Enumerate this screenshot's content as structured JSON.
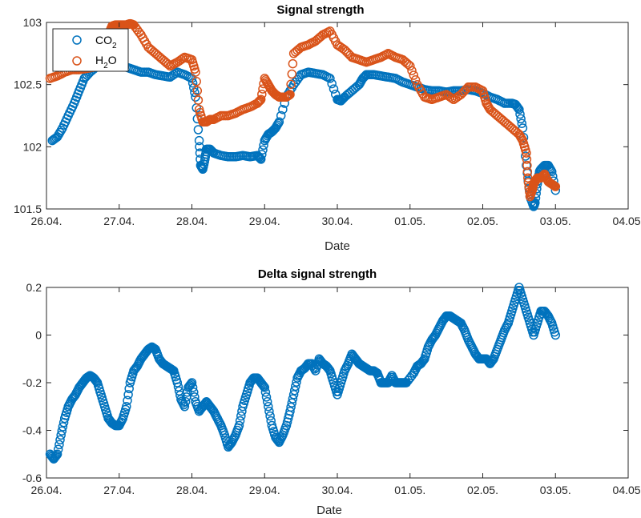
{
  "chart_data": [
    {
      "type": "scatter",
      "title": "Signal strength",
      "xlabel": "Date",
      "ylabel": "",
      "x_tick_labels": [
        "26.04.",
        "27.04.",
        "28.04.",
        "29.04.",
        "30.04.",
        "01.05.",
        "02.05.",
        "03.05.",
        "04.05."
      ],
      "xlim_days": [
        0,
        8
      ],
      "ylim": [
        101.5,
        103
      ],
      "y_ticks": [
        101.5,
        102,
        102.5,
        103
      ],
      "y_tick_labels": [
        "101.5",
        "102",
        "102.5",
        "103"
      ],
      "legend_position": "top-left",
      "series": [
        {
          "name": "CO2",
          "name_base": "CO",
          "name_sub": "2",
          "color": "#0072BD",
          "x": [
            0.08,
            0.15,
            0.22,
            0.3,
            0.38,
            0.45,
            0.52,
            0.6,
            0.7,
            0.8,
            0.9,
            1.0,
            1.1,
            1.2,
            1.3,
            1.4,
            1.5,
            1.6,
            1.7,
            1.8,
            1.9,
            2.0,
            2.05,
            2.1,
            2.12,
            2.15,
            2.18,
            2.2,
            2.25,
            2.3,
            2.4,
            2.5,
            2.6,
            2.7,
            2.8,
            2.9,
            2.95,
            3.0,
            3.05,
            3.1,
            3.15,
            3.2,
            3.3,
            3.4,
            3.5,
            3.6,
            3.7,
            3.8,
            3.9,
            4.0,
            4.05,
            4.1,
            4.2,
            4.3,
            4.35,
            4.4,
            4.5,
            4.6,
            4.7,
            4.8,
            4.9,
            5.0,
            5.1,
            5.2,
            5.3,
            5.4,
            5.5,
            5.6,
            5.7,
            5.8,
            5.9,
            6.0,
            6.1,
            6.2,
            6.3,
            6.4,
            6.45,
            6.5,
            6.55,
            6.6,
            6.65,
            6.7,
            6.72,
            6.75,
            6.78,
            6.8,
            6.85,
            6.9,
            6.95,
            7.0
          ],
          "y": [
            102.05,
            102.08,
            102.15,
            102.25,
            102.35,
            102.45,
            102.55,
            102.6,
            102.65,
            102.66,
            102.65,
            102.65,
            102.64,
            102.62,
            102.6,
            102.6,
            102.58,
            102.57,
            102.56,
            102.6,
            102.58,
            102.55,
            102.4,
            102.05,
            101.85,
            101.82,
            101.9,
            101.98,
            101.98,
            101.95,
            101.93,
            101.92,
            101.92,
            101.93,
            101.92,
            101.93,
            101.9,
            102.05,
            102.1,
            102.12,
            102.15,
            102.2,
            102.4,
            102.5,
            102.58,
            102.6,
            102.59,
            102.58,
            102.55,
            102.38,
            102.37,
            102.4,
            102.45,
            102.5,
            102.55,
            102.58,
            102.58,
            102.57,
            102.56,
            102.55,
            102.52,
            102.5,
            102.48,
            102.46,
            102.45,
            102.45,
            102.44,
            102.45,
            102.45,
            102.46,
            102.45,
            102.43,
            102.4,
            102.38,
            102.35,
            102.35,
            102.34,
            102.3,
            102.15,
            101.85,
            101.6,
            101.52,
            101.55,
            101.7,
            101.8,
            101.82,
            101.85,
            101.85,
            101.8,
            101.65
          ]
        },
        {
          "name": "H2O",
          "name_base": "H",
          "name_sub": "2",
          "name_tail": "O",
          "color": "#D95319",
          "x": [
            0.05,
            0.15,
            0.25,
            0.35,
            0.45,
            0.55,
            0.65,
            0.75,
            0.8,
            0.85,
            0.9,
            0.95,
            1.0,
            1.05,
            1.1,
            1.15,
            1.2,
            1.3,
            1.4,
            1.5,
            1.6,
            1.7,
            1.8,
            1.9,
            2.0,
            2.05,
            2.1,
            2.15,
            2.2,
            2.25,
            2.3,
            2.4,
            2.5,
            2.6,
            2.7,
            2.8,
            2.9,
            2.95,
            3.0,
            3.05,
            3.1,
            3.15,
            3.2,
            3.3,
            3.35,
            3.4,
            3.5,
            3.6,
            3.7,
            3.8,
            3.9,
            4.0,
            4.1,
            4.2,
            4.3,
            4.4,
            4.5,
            4.6,
            4.7,
            4.8,
            4.9,
            5.0,
            5.1,
            5.2,
            5.3,
            5.4,
            5.5,
            5.6,
            5.7,
            5.8,
            5.9,
            6.0,
            6.05,
            6.1,
            6.2,
            6.3,
            6.4,
            6.5,
            6.55,
            6.6,
            6.62,
            6.65,
            6.68,
            6.7,
            6.72,
            6.75,
            6.8,
            6.85,
            6.9,
            6.95,
            7.0
          ],
          "y": [
            102.55,
            102.57,
            102.6,
            102.62,
            102.62,
            102.63,
            102.64,
            102.66,
            102.75,
            102.9,
            102.97,
            102.98,
            102.98,
            102.98,
            102.98,
            102.99,
            102.98,
            102.9,
            102.8,
            102.75,
            102.7,
            102.65,
            102.68,
            102.72,
            102.7,
            102.6,
            102.3,
            102.2,
            102.2,
            102.22,
            102.22,
            102.25,
            102.25,
            102.27,
            102.3,
            102.32,
            102.35,
            102.38,
            102.55,
            102.5,
            102.45,
            102.42,
            102.4,
            102.4,
            102.42,
            102.75,
            102.8,
            102.82,
            102.85,
            102.9,
            102.93,
            102.82,
            102.78,
            102.72,
            102.7,
            102.68,
            102.7,
            102.72,
            102.75,
            102.72,
            102.7,
            102.65,
            102.5,
            102.4,
            102.38,
            102.4,
            102.42,
            102.38,
            102.42,
            102.48,
            102.48,
            102.45,
            102.35,
            102.3,
            102.25,
            102.2,
            102.15,
            102.1,
            102.05,
            101.95,
            101.75,
            101.6,
            101.65,
            101.7,
            101.72,
            101.75,
            101.75,
            101.78,
            101.72,
            101.7,
            101.68
          ]
        }
      ]
    },
    {
      "type": "scatter",
      "title": "Delta signal strength",
      "xlabel": "Date",
      "ylabel": "",
      "x_tick_labels": [
        "26.04.",
        "27.04.",
        "28.04.",
        "29.04.",
        "30.04.",
        "01.05.",
        "02.05.",
        "03.05.",
        "04.05."
      ],
      "xlim_days": [
        0,
        8
      ],
      "ylim": [
        -0.6,
        0.2
      ],
      "y_ticks": [
        -0.6,
        -0.4,
        -0.2,
        0,
        0.2
      ],
      "y_tick_labels": [
        "-0.6",
        "-0.4",
        "-0.2",
        "0",
        "0.2"
      ],
      "series": [
        {
          "color": "#0072BD",
          "x": [
            0.05,
            0.1,
            0.15,
            0.2,
            0.25,
            0.3,
            0.35,
            0.4,
            0.45,
            0.5,
            0.55,
            0.6,
            0.65,
            0.7,
            0.75,
            0.8,
            0.85,
            0.9,
            0.95,
            1.0,
            1.05,
            1.1,
            1.15,
            1.2,
            1.25,
            1.3,
            1.35,
            1.4,
            1.45,
            1.5,
            1.55,
            1.6,
            1.65,
            1.7,
            1.75,
            1.8,
            1.85,
            1.9,
            1.95,
            2.0,
            2.05,
            2.1,
            2.15,
            2.2,
            2.25,
            2.3,
            2.35,
            2.4,
            2.45,
            2.5,
            2.55,
            2.6,
            2.65,
            2.7,
            2.75,
            2.8,
            2.85,
            2.9,
            2.95,
            3.0,
            3.05,
            3.1,
            3.15,
            3.2,
            3.25,
            3.3,
            3.35,
            3.4,
            3.45,
            3.5,
            3.55,
            3.6,
            3.65,
            3.7,
            3.75,
            3.8,
            3.85,
            3.9,
            3.95,
            4.0,
            4.05,
            4.1,
            4.15,
            4.2,
            4.25,
            4.3,
            4.35,
            4.4,
            4.45,
            4.5,
            4.55,
            4.6,
            4.65,
            4.7,
            4.75,
            4.8,
            4.85,
            4.9,
            4.95,
            5.05,
            5.1,
            5.15,
            5.2,
            5.25,
            5.3,
            5.35,
            5.4,
            5.45,
            5.5,
            5.55,
            5.6,
            5.65,
            5.7,
            5.75,
            5.8,
            5.85,
            5.9,
            5.95,
            6.0,
            6.05,
            6.1,
            6.15,
            6.2,
            6.25,
            6.3,
            6.35,
            6.4,
            6.45,
            6.5,
            6.55,
            6.6,
            6.65,
            6.7,
            6.75,
            6.8,
            6.85,
            6.9,
            6.95,
            7.0
          ],
          "y": [
            -0.5,
            -0.52,
            -0.5,
            -0.42,
            -0.35,
            -0.3,
            -0.27,
            -0.25,
            -0.22,
            -0.2,
            -0.18,
            -0.17,
            -0.18,
            -0.2,
            -0.25,
            -0.3,
            -0.35,
            -0.37,
            -0.38,
            -0.38,
            -0.35,
            -0.3,
            -0.2,
            -0.15,
            -0.13,
            -0.1,
            -0.08,
            -0.06,
            -0.05,
            -0.06,
            -0.1,
            -0.12,
            -0.13,
            -0.14,
            -0.15,
            -0.2,
            -0.27,
            -0.3,
            -0.22,
            -0.2,
            -0.28,
            -0.32,
            -0.3,
            -0.28,
            -0.3,
            -0.32,
            -0.35,
            -0.38,
            -0.42,
            -0.47,
            -0.45,
            -0.42,
            -0.38,
            -0.3,
            -0.25,
            -0.2,
            -0.18,
            -0.18,
            -0.2,
            -0.22,
            -0.3,
            -0.38,
            -0.43,
            -0.45,
            -0.42,
            -0.38,
            -0.32,
            -0.25,
            -0.18,
            -0.15,
            -0.14,
            -0.12,
            -0.12,
            -0.15,
            -0.1,
            -0.12,
            -0.13,
            -0.15,
            -0.2,
            -0.25,
            -0.2,
            -0.15,
            -0.12,
            -0.08,
            -0.1,
            -0.12,
            -0.13,
            -0.14,
            -0.15,
            -0.15,
            -0.16,
            -0.2,
            -0.2,
            -0.2,
            -0.17,
            -0.2,
            -0.2,
            -0.2,
            -0.2,
            -0.16,
            -0.13,
            -0.12,
            -0.1,
            -0.05,
            -0.02,
            0.0,
            0.03,
            0.06,
            0.08,
            0.08,
            0.07,
            0.06,
            0.05,
            0.02,
            -0.02,
            -0.05,
            -0.08,
            -0.1,
            -0.1,
            -0.1,
            -0.12,
            -0.1,
            -0.06,
            -0.02,
            0.02,
            0.05,
            0.1,
            0.15,
            0.2,
            0.15,
            0.1,
            0.05,
            0.0,
            0.05,
            0.1,
            0.1,
            0.08,
            0.05,
            0.0
          ]
        }
      ]
    }
  ]
}
